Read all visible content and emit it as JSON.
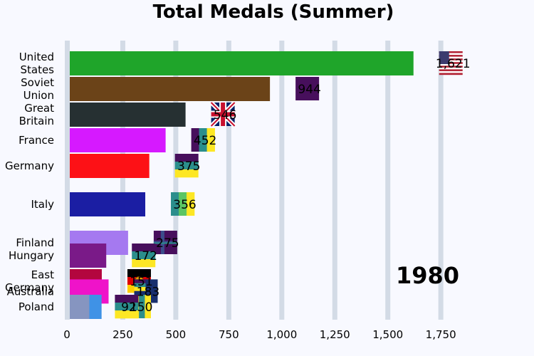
{
  "chart_data": {
    "type": "bar",
    "orientation": "horizontal",
    "title": "Total Medals (Summer)",
    "xlabel": "",
    "ylabel": "",
    "xlim": [
      0,
      1880
    ],
    "xticks": [
      0,
      250,
      500,
      750,
      1000,
      1250,
      1500,
      1750
    ],
    "xtick_labels": [
      "0",
      "250",
      "500",
      "750",
      "1,000",
      "1,250",
      "1,500",
      "1,750"
    ],
    "grid": true,
    "year_label": "1980",
    "bars": [
      {
        "label_lines": [
          "United",
          "States"
        ],
        "value": 1621,
        "value_label": "1,621",
        "color": "#1fa52a",
        "flag": "usa",
        "slot": 0
      },
      {
        "label_lines": [
          "Soviet",
          "Union"
        ],
        "value": 944,
        "value_label": "944",
        "color": "#6b4318",
        "flag": "ussr",
        "slot": 1
      },
      {
        "label_lines": [
          "Great",
          "Britain"
        ],
        "value": 546,
        "value_label": "546",
        "color": "#263032",
        "flag": "gbr",
        "slot": 2
      },
      {
        "label_lines": [
          "France"
        ],
        "value": 452,
        "value_label": "452",
        "color": "#d619ff",
        "flag": "fra",
        "slot": 3
      },
      {
        "label_lines": [
          "Germany"
        ],
        "value": 375,
        "value_label": "375",
        "color": "#fd1116",
        "flag": "ger",
        "slot": 4
      },
      {
        "label_lines": [
          "Italy"
        ],
        "value": 356,
        "value_label": "356",
        "color": "#1b1ea3",
        "flag": "ita",
        "slot": 5.5
      },
      {
        "label_lines": [
          "Finland"
        ],
        "value": 275,
        "value_label": "275",
        "color": "#a579f0",
        "flag": "fin",
        "slot": 7
      },
      {
        "label_lines": [
          "Hungary"
        ],
        "value": 172,
        "value_label": "172",
        "color": "#7a1a88",
        "flag": "hun",
        "slot": 7.5
      },
      {
        "label_lines": [
          "East",
          "Germany"
        ],
        "value": 151,
        "value_label": "151",
        "color": "#b3063e",
        "flag": "gdr",
        "slot": 8.5
      },
      {
        "label_lines": [
          "Australia"
        ],
        "value": 183,
        "value_label": "183",
        "color": "#ef13c9",
        "flag": "aus",
        "slot": 8.9
      },
      {
        "label_lines": [
          "Poland"
        ],
        "value": 150,
        "value_label": "150",
        "color": "#3f92e6",
        "flag": "pol",
        "slot": 9.5
      },
      {
        "label_lines": [
          "Poland"
        ],
        "value": 92,
        "value_label": "92",
        "color": "#8695c0",
        "flag": "pol2",
        "slot": 9.5
      }
    ]
  }
}
